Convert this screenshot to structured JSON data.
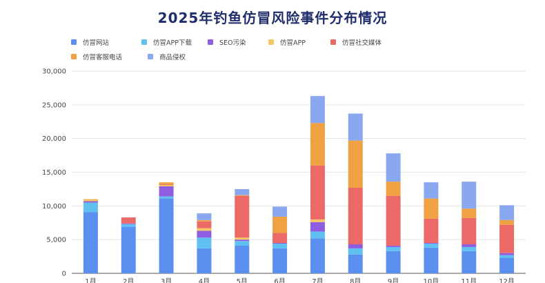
{
  "colors": {
    "title": "#1f2d6b",
    "grid": "#e6e6e6",
    "axis": "#555555"
  },
  "chart_data": {
    "type": "bar",
    "stacked": true,
    "title": "2025年钓鱼仿冒风险事件分布情况",
    "xlabel": "",
    "ylabel": "",
    "ylim": [
      0,
      30000
    ],
    "yticks": [
      "0",
      "5,000",
      "10,000",
      "15,000",
      "20,000",
      "25,000",
      "30,000"
    ],
    "grid": true,
    "legend_position": "top",
    "categories": [
      "1月",
      "2月",
      "3月",
      "4月",
      "5月",
      "6月",
      "7月",
      "8月",
      "9月",
      "10月",
      "11月",
      "12月"
    ],
    "series": [
      {
        "name": "仿冒网站",
        "color": "#5b8ff0",
        "values": [
          9100,
          6900,
          11100,
          3700,
          4100,
          3700,
          5200,
          2800,
          3300,
          3800,
          3300,
          2300
        ]
      },
      {
        "name": "仿冒APP下载",
        "color": "#60c0f0",
        "values": [
          1400,
          400,
          300,
          1600,
          700,
          700,
          1000,
          900,
          600,
          600,
          600,
          400
        ]
      },
      {
        "name": "SEO污染",
        "color": "#8e5de2",
        "values": [
          200,
          100,
          1500,
          1000,
          200,
          100,
          1400,
          600,
          200,
          100,
          400,
          300
        ]
      },
      {
        "name": "仿冒APP",
        "color": "#f3c766",
        "values": [
          200,
          0,
          200,
          400,
          300,
          0,
          400,
          0,
          0,
          0,
          0,
          0
        ]
      },
      {
        "name": "仿冒社交媒体",
        "color": "#eb6a67",
        "values": [
          0,
          900,
          100,
          1000,
          6200,
          1500,
          8000,
          8400,
          7400,
          3600,
          3900,
          4200
        ]
      },
      {
        "name": "仿冒客服电话",
        "color": "#f0a143",
        "values": [
          100,
          0,
          300,
          200,
          100,
          2400,
          6300,
          7000,
          2100,
          3000,
          1400,
          700
        ]
      },
      {
        "name": "商品侵权",
        "color": "#8aa8ef",
        "values": [
          0,
          0,
          0,
          1000,
          900,
          1500,
          4000,
          4000,
          4200,
          2400,
          4000,
          2200
        ]
      }
    ]
  }
}
